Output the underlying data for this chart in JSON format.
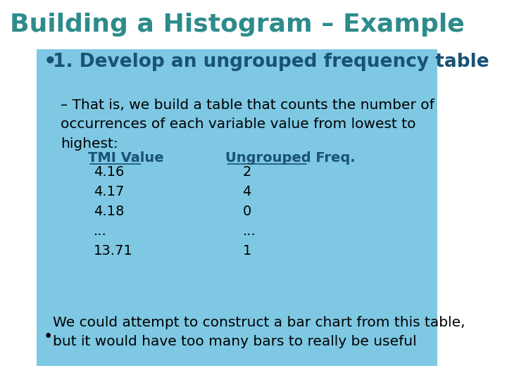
{
  "title": "Building a Histogram – Example",
  "title_color": "#2E8B8B",
  "title_fontsize": 26,
  "title_fontweight": "bold",
  "bg_color": "#FFFFFF",
  "content_bg_color": "#7EC8E3",
  "bullet1_text": "1. Develop an ungrouped frequency table",
  "bullet1_color": "#1A5276",
  "bullet1_fontsize": 19,
  "bullet1_fontweight": "bold",
  "dash_text": "That is, we build a table that counts the number of\noccurrences of each variable value from lowest to\nhighest:",
  "dash_fontsize": 14.5,
  "dash_color": "#000000",
  "col1_header": "TMI Value",
  "col2_header": "Ungrouped Freq.",
  "header_color": "#1A5276",
  "header_fontsize": 14,
  "table_rows": [
    [
      "4.16",
      "2"
    ],
    [
      "4.17",
      "4"
    ],
    [
      "4.18",
      "0"
    ],
    [
      "...",
      "..."
    ],
    [
      "13.71",
      "1"
    ]
  ],
  "table_fontsize": 14,
  "table_color": "#000000",
  "bullet2_text": "We could attempt to construct a bar chart from this table,\nbut it would have too many bars to really be useful",
  "bullet2_fontsize": 14.5,
  "bullet2_color": "#000000"
}
